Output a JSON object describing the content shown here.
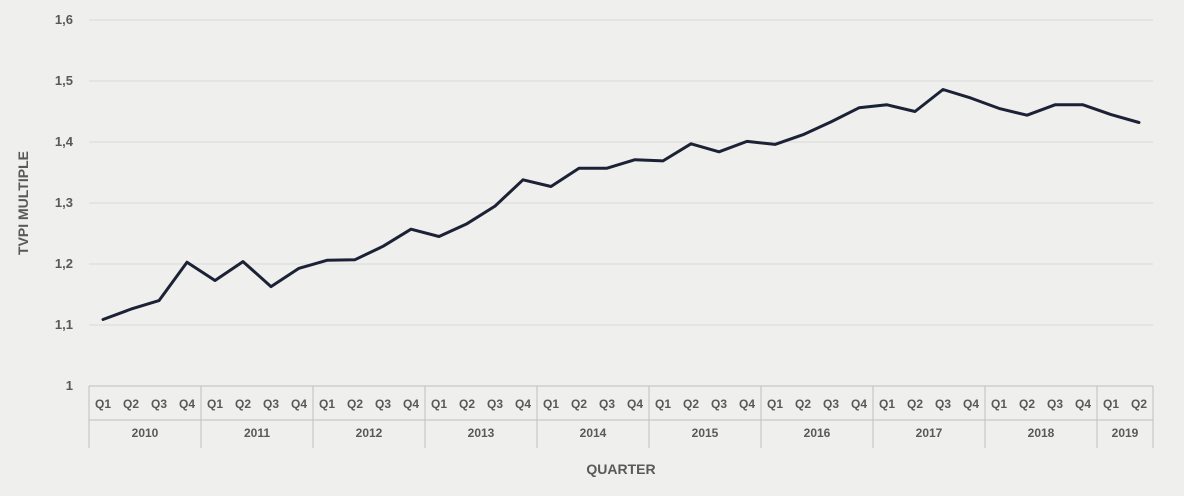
{
  "chart_data": {
    "type": "line",
    "xlabel": "QUARTER",
    "ylabel": "TVPI MULTIPLE",
    "ylim": [
      1.0,
      1.6
    ],
    "y_ticks": [
      "1",
      "1,1",
      "1,2",
      "1,3",
      "1,4",
      "1,5",
      "1,6"
    ],
    "y_tick_values": [
      1.0,
      1.1,
      1.2,
      1.3,
      1.4,
      1.5,
      1.6
    ],
    "grid": true,
    "legend": "none",
    "line_color": "#1c2235",
    "years": [
      {
        "label": "2010",
        "quarters": [
          "Q1",
          "Q2",
          "Q3",
          "Q4"
        ]
      },
      {
        "label": "2011",
        "quarters": [
          "Q1",
          "Q2",
          "Q3",
          "Q4"
        ]
      },
      {
        "label": "2012",
        "quarters": [
          "Q1",
          "Q2",
          "Q3",
          "Q4"
        ]
      },
      {
        "label": "2013",
        "quarters": [
          "Q1",
          "Q2",
          "Q3",
          "Q4"
        ]
      },
      {
        "label": "2014",
        "quarters": [
          "Q1",
          "Q2",
          "Q3",
          "Q4"
        ]
      },
      {
        "label": "2015",
        "quarters": [
          "Q1",
          "Q2",
          "Q3",
          "Q4"
        ]
      },
      {
        "label": "2016",
        "quarters": [
          "Q1",
          "Q2",
          "Q3",
          "Q4"
        ]
      },
      {
        "label": "2017",
        "quarters": [
          "Q1",
          "Q2",
          "Q3",
          "Q4"
        ]
      },
      {
        "label": "2018",
        "quarters": [
          "Q1",
          "Q2",
          "Q3",
          "Q4"
        ]
      },
      {
        "label": "2019",
        "quarters": [
          "Q1",
          "Q2"
        ]
      }
    ],
    "series": [
      {
        "values": [
          1.109,
          1.126,
          1.14,
          1.203,
          1.173,
          1.204,
          1.163,
          1.193,
          1.206,
          1.207,
          1.229,
          1.257,
          1.245,
          1.266,
          1.295,
          1.338,
          1.327,
          1.357,
          1.357,
          1.371,
          1.369,
          1.397,
          1.384,
          1.401,
          1.396,
          1.412,
          1.433,
          1.456,
          1.461,
          1.45,
          1.486,
          1.472,
          1.455,
          1.444,
          1.461,
          1.461,
          1.445,
          1.432
        ]
      }
    ]
  }
}
